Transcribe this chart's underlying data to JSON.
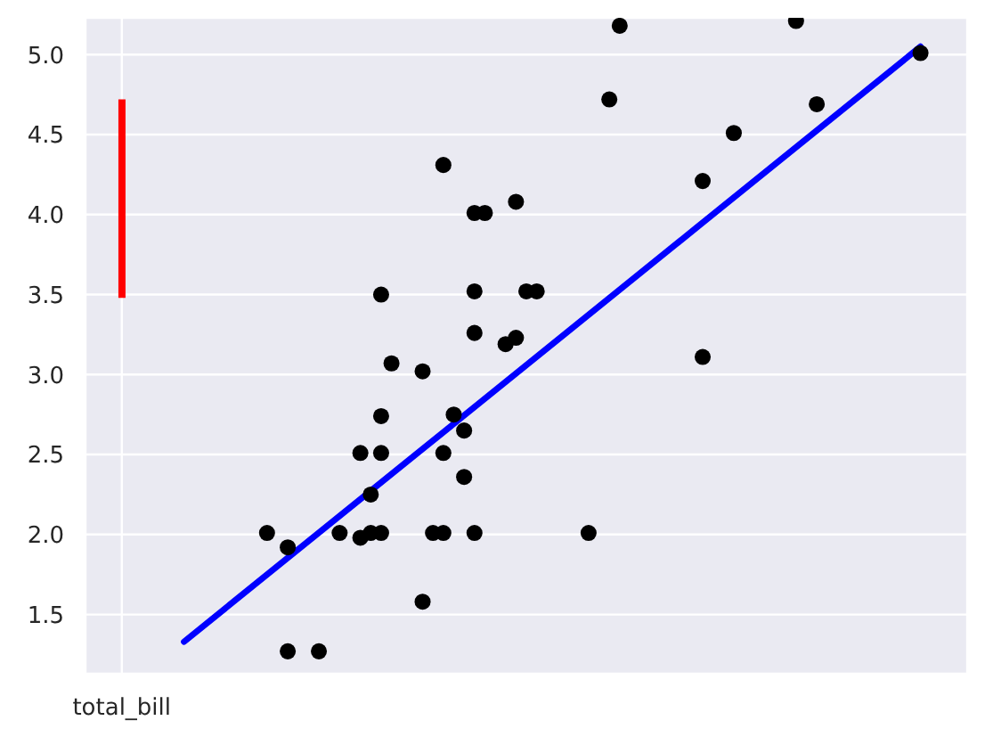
{
  "chart_data": {
    "type": "scatter",
    "grid": true,
    "categories": [
      null,
      null,
      null,
      "total_bill",
      null,
      null,
      null,
      null,
      null,
      null,
      null,
      null,
      null,
      null,
      null,
      null,
      null,
      null,
      null,
      null,
      null,
      null,
      null,
      null,
      null,
      null,
      null,
      null,
      null,
      null,
      null,
      null,
      null,
      null,
      null,
      null,
      null,
      null,
      null,
      null,
      null,
      null,
      null,
      null,
      null,
      null,
      null,
      null,
      null,
      null,
      null,
      null,
      null,
      null,
      null,
      null,
      null,
      null,
      null,
      null,
      null,
      null,
      null,
      null,
      null,
      null,
      null,
      null,
      null,
      null,
      null,
      null,
      null,
      null,
      null,
      null,
      null,
      null,
      null,
      null,
      null,
      null,
      null,
      null,
      null
    ],
    "ylim": [
      1.13,
      5.23
    ],
    "yticks": [
      {
        "value": 1.5,
        "label": "1.5"
      },
      {
        "value": 2,
        "label": "2.0"
      },
      {
        "value": 2.5,
        "label": "2.5"
      },
      {
        "value": 3,
        "label": "3.0"
      },
      {
        "value": 3.5,
        "label": "3.5"
      },
      {
        "value": 4,
        "label": "4.0"
      },
      {
        "value": 4.5,
        "label": "4.5"
      },
      {
        "value": 5,
        "label": "5.0"
      }
    ],
    "series": [
      {
        "type": "bar",
        "color": "#ff0000",
        "base": [
          null,
          null,
          null,
          3.48,
          null,
          null,
          null,
          null,
          null,
          null,
          null,
          null,
          null,
          null,
          null,
          null,
          null,
          null,
          null,
          null,
          null,
          null,
          null,
          null,
          null,
          null,
          null,
          null,
          null,
          null,
          null,
          null,
          null,
          null,
          null,
          null,
          null,
          null,
          null,
          null,
          null,
          null,
          null,
          null,
          null,
          null,
          null,
          null,
          null,
          null,
          null,
          null,
          null,
          null,
          null,
          null,
          null,
          null,
          null,
          null,
          null,
          null,
          null,
          null,
          null,
          null,
          null,
          null,
          null,
          null,
          null,
          null,
          null,
          null,
          null,
          null,
          null,
          null,
          null,
          null,
          null,
          null,
          null,
          null,
          null
        ],
        "values": [
          null,
          null,
          null,
          1.24,
          null,
          null,
          null,
          null,
          null,
          null,
          null,
          null,
          null,
          null,
          null,
          null,
          null,
          null,
          null,
          null,
          null,
          null,
          null,
          null,
          null,
          null,
          null,
          null,
          null,
          null,
          null,
          null,
          null,
          null,
          null,
          null,
          null,
          null,
          null,
          null,
          null,
          null,
          null,
          null,
          null,
          null,
          null,
          null,
          null,
          null,
          null,
          null,
          null,
          null,
          null,
          null,
          null,
          null,
          null,
          null,
          null,
          null,
          null,
          null,
          null,
          null,
          null,
          null,
          null,
          null,
          null,
          null,
          null,
          null,
          null,
          null,
          null,
          null,
          null,
          null,
          null,
          null,
          null,
          null,
          null
        ]
      },
      {
        "color": "#000000",
        "marker": "circle",
        "values": [
          null,
          null,
          null,
          null,
          null,
          null,
          null,
          null,
          null,
          null,
          null,
          null,
          null,
          null,
          null,
          null,
          null,
          2.01,
          null,
          1.92,
          null,
          null,
          1.27,
          null,
          2.01,
          null,
          1.98,
          2.25,
          2.01,
          3.07,
          null,
          null,
          1.58,
          2.01,
          4.31,
          2.75,
          2.65,
          2.01,
          4.01,
          null,
          3.19,
          3.23,
          3.52,
          3.52,
          null,
          null,
          null,
          null,
          2.01,
          null,
          4.72,
          5.18,
          null,
          null,
          null,
          null,
          null,
          null,
          null,
          4.21,
          null,
          null,
          4.51,
          null,
          null,
          null,
          null,
          null,
          5.21,
          null,
          4.69,
          null,
          null,
          null,
          null,
          null,
          null,
          null,
          null,
          null,
          5.01,
          null,
          null,
          null,
          null
        ]
      },
      {
        "color": "#000000",
        "marker": "circle",
        "values": [
          null,
          null,
          null,
          null,
          null,
          null,
          null,
          null,
          null,
          null,
          null,
          null,
          null,
          null,
          null,
          null,
          null,
          null,
          null,
          1.27,
          null,
          null,
          null,
          null,
          null,
          null,
          2.51,
          2.01,
          2.74,
          null,
          null,
          null,
          3.02,
          null,
          2.51,
          null,
          2.36,
          3.52,
          null,
          null,
          null,
          4.08,
          null,
          null,
          null,
          null,
          null,
          null,
          null,
          null,
          null,
          null,
          null,
          null,
          null,
          null,
          null,
          null,
          null,
          3.11,
          null,
          null,
          null,
          null,
          null,
          null,
          null,
          null,
          null,
          null,
          null,
          null,
          null,
          null,
          null,
          null,
          null,
          null,
          null,
          null,
          null,
          null,
          null,
          null,
          null
        ]
      },
      {
        "color": "#000000",
        "marker": "circle",
        "values": [
          null,
          null,
          null,
          null,
          null,
          null,
          null,
          null,
          null,
          null,
          null,
          null,
          null,
          null,
          null,
          null,
          null,
          null,
          null,
          null,
          null,
          null,
          null,
          null,
          null,
          null,
          null,
          null,
          2.51,
          null,
          null,
          null,
          null,
          null,
          2.01,
          null,
          null,
          3.26,
          null,
          null,
          null,
          null,
          null,
          null,
          null,
          null,
          null,
          null,
          null,
          null,
          null,
          null,
          null,
          null,
          null,
          null,
          null,
          null,
          null,
          null,
          null,
          null,
          null,
          null,
          null,
          null,
          null,
          null,
          null,
          null,
          null,
          null,
          null,
          null,
          null,
          null,
          null,
          null,
          null,
          null,
          null,
          null,
          null,
          null,
          null
        ]
      },
      {
        "color": "#000000",
        "marker": "circle",
        "values": [
          null,
          null,
          null,
          null,
          null,
          null,
          null,
          null,
          null,
          null,
          null,
          null,
          null,
          null,
          null,
          null,
          null,
          null,
          null,
          null,
          null,
          null,
          null,
          null,
          null,
          null,
          null,
          null,
          3.5,
          null,
          null,
          null,
          null,
          null,
          null,
          null,
          null,
          4.01,
          null,
          null,
          null,
          null,
          null,
          null,
          null,
          null,
          null,
          null,
          null,
          null,
          null,
          null,
          null,
          null,
          null,
          null,
          null,
          null,
          null,
          null,
          null,
          null,
          null,
          null,
          null,
          null,
          null,
          null,
          null,
          null,
          null,
          null,
          null,
          null,
          null,
          null,
          null,
          null,
          null,
          null,
          null,
          null,
          null,
          null,
          null
        ]
      },
      {
        "type": "line",
        "color": "#0000ff",
        "marker": "none",
        "line_style": "solid",
        "values": [
          null,
          null,
          null,
          null,
          null,
          null,
          null,
          null,
          null,
          1.33,
          null,
          null,
          null,
          null,
          null,
          null,
          null,
          null,
          null,
          null,
          null,
          null,
          null,
          null,
          null,
          null,
          null,
          null,
          null,
          null,
          null,
          null,
          null,
          null,
          null,
          null,
          null,
          null,
          null,
          null,
          null,
          null,
          null,
          null,
          null,
          null,
          null,
          null,
          null,
          null,
          null,
          null,
          null,
          null,
          null,
          null,
          null,
          null,
          null,
          null,
          null,
          null,
          null,
          null,
          null,
          null,
          null,
          null,
          null,
          null,
          null,
          null,
          null,
          null,
          null,
          null,
          null,
          null,
          null,
          null,
          5.05,
          null,
          null,
          null,
          null
        ]
      }
    ]
  }
}
